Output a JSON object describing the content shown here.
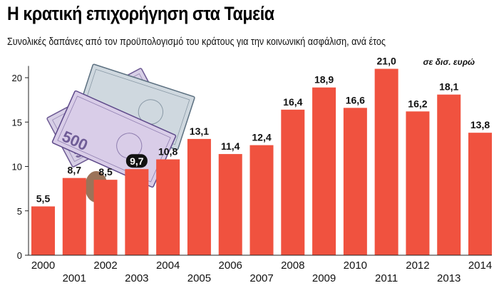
{
  "header": {
    "title": "Η κρατική επιχορήγηση στα Ταμεία",
    "subtitle": "Συνολικές δαπάνες από τον προϋπολογισμό του κράτους για την κοινωνική ασφάλιση, ανά έτος",
    "unit_label": "σε δισ. ευρώ"
  },
  "colors": {
    "bar": "#f0523f",
    "axis": "#222222",
    "grid": "#bbbbbb",
    "label_highlight_bg": "#111111",
    "label_highlight_fg": "#ffffff"
  },
  "decoration": {
    "image": "euro-banknotes-icon",
    "banknote_text": "500"
  },
  "chart_data": {
    "type": "bar",
    "title": "Η κρατική επιχορήγηση στα Ταμεία",
    "subtitle": "Συνολικές δαπάνες από τον προϋπολογισμό του κράτους για την κοινωνική ασφάλιση, ανά έτος",
    "ylabel": "σε δισ. ευρώ",
    "xlabel": "",
    "categories": [
      "2000",
      "2001",
      "2002",
      "2003",
      "2004",
      "2005",
      "2006",
      "2007",
      "2008",
      "2009",
      "2010",
      "2011",
      "2012",
      "2013",
      "2014"
    ],
    "values": [
      5.5,
      8.7,
      8.5,
      9.7,
      10.8,
      13.1,
      11.4,
      12.4,
      16.4,
      18.9,
      16.6,
      21.0,
      16.2,
      18.1,
      13.8
    ],
    "value_labels": [
      "5,5",
      "8,7",
      "8,5",
      "9,7",
      "10,8",
      "13,1",
      "11,4",
      "12,4",
      "16,4",
      "18,9",
      "16,6",
      "21,0",
      "16,2",
      "18,1",
      "13,8"
    ],
    "highlighted_label_index": 3,
    "yticks": [
      "0",
      "5",
      "10",
      "15",
      "20"
    ],
    "ytick_values": [
      0,
      5,
      10,
      15,
      20
    ],
    "ylim": [
      0,
      21
    ],
    "grid": false,
    "legend": "none"
  }
}
